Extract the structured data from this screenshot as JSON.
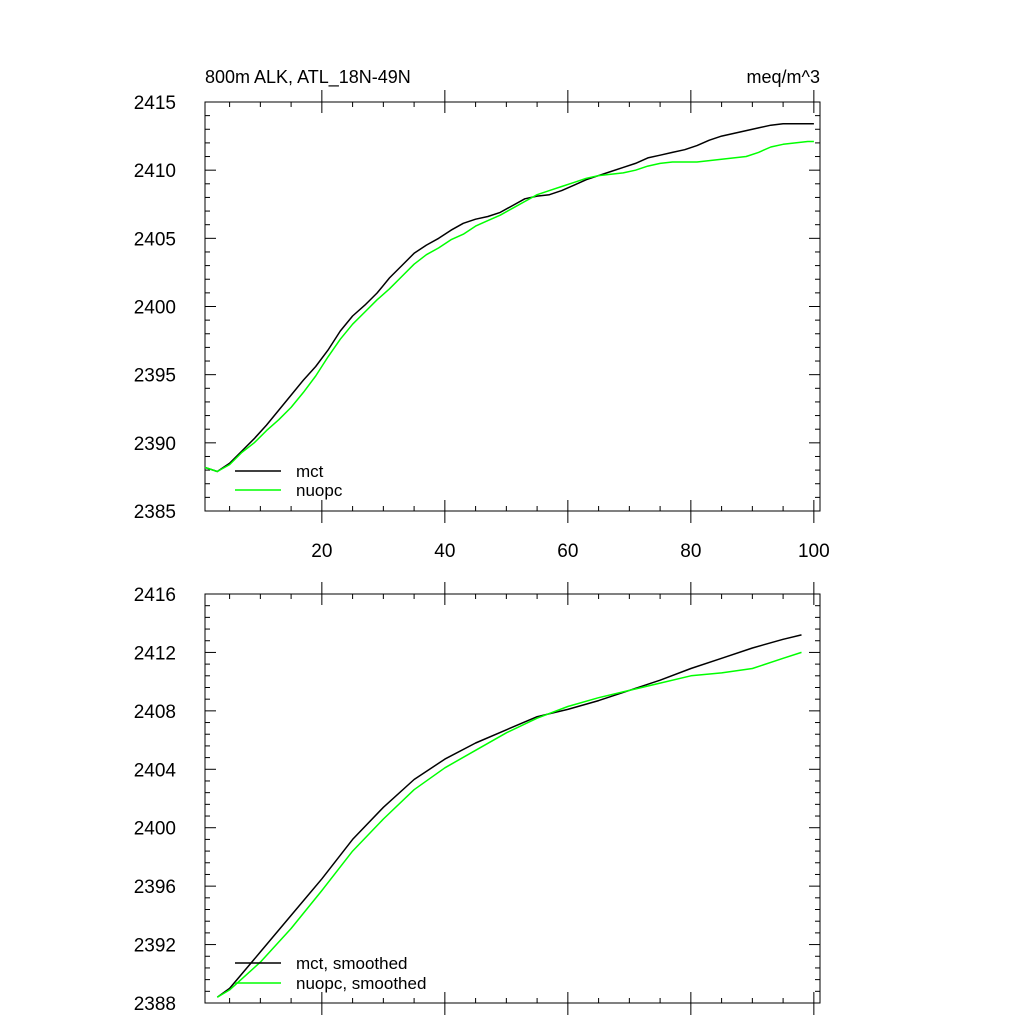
{
  "colors": {
    "mct": "#000000",
    "nuopc": "#00ff00"
  },
  "chart_data": [
    {
      "type": "line",
      "title": "800m ALK, ATL_18N-49N",
      "units": "meq/m^3",
      "xlim": [
        1,
        101
      ],
      "ylim": [
        2385,
        2415
      ],
      "xticks": [
        20,
        40,
        60,
        80,
        100
      ],
      "xtick_labels": [
        "20",
        "40",
        "60",
        "80",
        "100"
      ],
      "yticks": [
        2385,
        2390,
        2395,
        2400,
        2405,
        2410,
        2415
      ],
      "ytick_labels": [
        "2385",
        "2390",
        "2395",
        "2400",
        "2405",
        "2410",
        "2415"
      ],
      "legend_position": "bottom-left",
      "series": [
        {
          "name": "mct",
          "color": "#000000",
          "x": [
            1,
            3,
            5,
            7,
            9,
            11,
            13,
            15,
            17,
            19,
            21,
            23,
            25,
            27,
            29,
            31,
            33,
            35,
            37,
            39,
            41,
            43,
            45,
            47,
            49,
            51,
            53,
            55,
            57,
            59,
            61,
            63,
            65,
            67,
            69,
            71,
            73,
            75,
            77,
            79,
            81,
            83,
            85,
            87,
            89,
            91,
            93,
            95,
            97,
            99,
            100
          ],
          "values": [
            2388.2,
            2387.9,
            2388.5,
            2389.4,
            2390.3,
            2391.3,
            2392.4,
            2393.5,
            2394.6,
            2395.6,
            2396.8,
            2398.2,
            2399.3,
            2400.1,
            2401.0,
            2402.1,
            2403.0,
            2403.9,
            2404.5,
            2405.0,
            2405.6,
            2406.1,
            2406.4,
            2406.6,
            2406.9,
            2407.4,
            2407.9,
            2408.1,
            2408.2,
            2408.5,
            2408.9,
            2409.3,
            2409.6,
            2409.9,
            2410.2,
            2410.5,
            2410.9,
            2411.1,
            2411.3,
            2411.5,
            2411.8,
            2412.2,
            2412.5,
            2412.7,
            2412.9,
            2413.1,
            2413.3,
            2413.4,
            2413.4,
            2413.4,
            2413.4
          ],
          "label": "mct"
        },
        {
          "name": "nuopc",
          "color": "#00ff00",
          "x": [
            1,
            3,
            5,
            7,
            9,
            11,
            13,
            15,
            17,
            19,
            21,
            23,
            25,
            27,
            29,
            31,
            33,
            35,
            37,
            39,
            41,
            43,
            45,
            47,
            49,
            51,
            53,
            55,
            57,
            59,
            61,
            63,
            65,
            67,
            69,
            71,
            73,
            75,
            77,
            79,
            81,
            83,
            85,
            87,
            89,
            91,
            93,
            95,
            97,
            99,
            100
          ],
          "values": [
            2388.2,
            2387.9,
            2388.4,
            2389.3,
            2390.0,
            2390.9,
            2391.7,
            2392.6,
            2393.7,
            2394.9,
            2396.3,
            2397.6,
            2398.7,
            2399.6,
            2400.5,
            2401.3,
            2402.2,
            2403.1,
            2403.8,
            2404.3,
            2404.9,
            2405.3,
            2405.9,
            2406.3,
            2406.7,
            2407.2,
            2407.7,
            2408.2,
            2408.5,
            2408.8,
            2409.1,
            2409.4,
            2409.6,
            2409.7,
            2409.8,
            2410.0,
            2410.3,
            2410.5,
            2410.6,
            2410.6,
            2410.6,
            2410.7,
            2410.8,
            2410.9,
            2411.0,
            2411.3,
            2411.7,
            2411.9,
            2412.0,
            2412.1,
            2412.1
          ],
          "label": "nuopc"
        }
      ]
    },
    {
      "type": "line",
      "title": "",
      "xlim": [
        1,
        101
      ],
      "ylim": [
        2388,
        2416
      ],
      "xticks": [
        20,
        40,
        60,
        80,
        100
      ],
      "xtick_labels": [],
      "yticks": [
        2388,
        2392,
        2396,
        2400,
        2404,
        2408,
        2412,
        2416
      ],
      "ytick_labels": [
        "2388",
        "2392",
        "2396",
        "2400",
        "2404",
        "2408",
        "2412",
        "2416"
      ],
      "legend_position": "bottom-left",
      "series": [
        {
          "name": "mct, smoothed",
          "color": "#000000",
          "x": [
            3,
            5,
            10,
            15,
            20,
            25,
            30,
            35,
            40,
            45,
            50,
            55,
            60,
            65,
            70,
            75,
            80,
            85,
            90,
            95,
            98
          ],
          "values": [
            2388.4,
            2389.0,
            2391.5,
            2394.0,
            2396.5,
            2399.2,
            2401.4,
            2403.3,
            2404.7,
            2405.8,
            2406.7,
            2407.6,
            2408.1,
            2408.7,
            2409.4,
            2410.1,
            2410.9,
            2411.6,
            2412.3,
            2412.9,
            2413.2
          ],
          "label": "mct, smoothed"
        },
        {
          "name": "nuopc, smoothed",
          "color": "#00ff00",
          "x": [
            3,
            5,
            10,
            15,
            20,
            25,
            30,
            35,
            40,
            45,
            50,
            55,
            60,
            65,
            70,
            75,
            80,
            85,
            90,
            95,
            98
          ],
          "values": [
            2388.4,
            2388.9,
            2390.8,
            2393.1,
            2395.7,
            2398.4,
            2400.6,
            2402.6,
            2404.1,
            2405.3,
            2406.5,
            2407.5,
            2408.3,
            2408.9,
            2409.4,
            2409.9,
            2410.4,
            2410.6,
            2410.9,
            2411.6,
            2412.0
          ],
          "label": "nuopc, smoothed"
        }
      ]
    }
  ]
}
